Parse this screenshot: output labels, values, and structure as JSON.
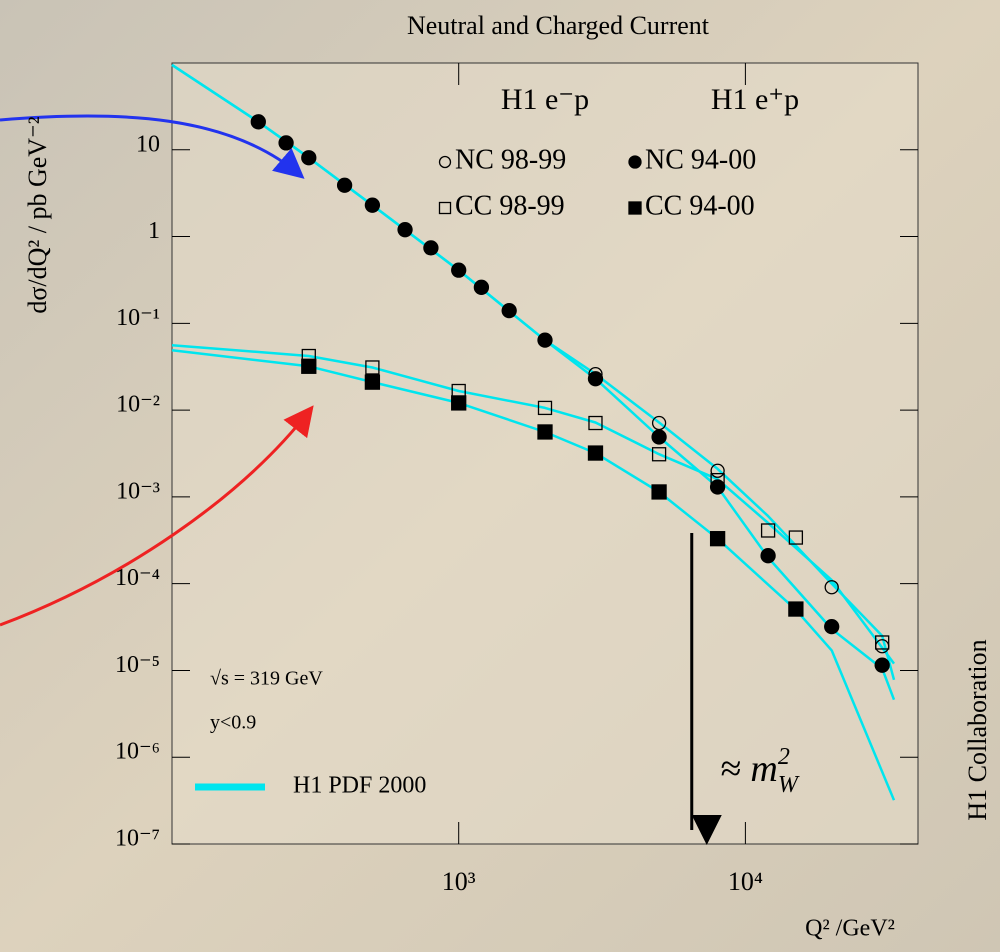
{
  "chart_data": {
    "type": "scatter",
    "title": "Neutral and Charged Current",
    "x_label": "Q²  /GeV²",
    "y_label": "dσ/dQ² / pb GeV⁻²",
    "log_x": true,
    "log_y": true,
    "xlim": [
      100,
      40000
    ],
    "ylim": [
      1e-07,
      100
    ],
    "xticks": [
      {
        "value": 1000,
        "label": "10³"
      },
      {
        "value": 10000,
        "label": "10⁴"
      }
    ],
    "yticks": [
      {
        "value": 1e-07,
        "label": "10⁻⁷"
      },
      {
        "value": 1e-06,
        "label": "10⁻⁶"
      },
      {
        "value": 1e-05,
        "label": "10⁻⁵"
      },
      {
        "value": 0.0001,
        "label": "10⁻⁴"
      },
      {
        "value": 0.001,
        "label": "10⁻³"
      },
      {
        "value": 0.01,
        "label": "10⁻²"
      },
      {
        "value": 0.1,
        "label": "10⁻¹"
      },
      1,
      10
    ],
    "legend_headers": [
      "H1 e⁻p",
      "H1 e⁺p"
    ],
    "series": [
      {
        "name": "NC 98-99",
        "marker": "open-circle",
        "color": "#000000",
        "x": [
          3000,
          5000,
          8000,
          20000,
          30000
        ],
        "values": [
          0.026,
          0.0071,
          0.002,
          9.1e-05,
          1.9e-05
        ]
      },
      {
        "name": "NC 94-00",
        "marker": "filled-circle",
        "color": "#000000",
        "x": [
          200,
          250,
          300,
          400,
          500,
          650,
          800,
          1000,
          1200,
          1500,
          2000,
          3000,
          5000,
          8000,
          12000,
          20000,
          30000
        ],
        "values": [
          21,
          12,
          8.1,
          3.9,
          2.3,
          1.2,
          0.74,
          0.41,
          0.26,
          0.14,
          0.064,
          0.023,
          0.0049,
          0.0013,
          0.00021,
          3.2e-05,
          1.15e-05
        ]
      },
      {
        "name": "CC 98-99",
        "marker": "open-square",
        "color": "#000000",
        "x": [
          300,
          500,
          1000,
          2000,
          3000,
          5000,
          8000,
          12000,
          15000,
          30000
        ],
        "values": [
          0.042,
          0.031,
          0.0166,
          0.0106,
          0.0071,
          0.0031,
          0.00156,
          0.00041,
          0.00034,
          2.1e-05
        ]
      },
      {
        "name": "CC 94-00",
        "marker": "filled-square",
        "color": "#000000",
        "x": [
          300,
          500,
          1000,
          2000,
          3000,
          5000,
          8000,
          15000
        ],
        "values": [
          0.032,
          0.021,
          0.0121,
          0.0056,
          0.0032,
          0.00114,
          0.00033,
          5.1e-05
        ]
      }
    ],
    "fit": {
      "name": "H1 PDF 2000",
      "color": "#00e5ee",
      "curves": [
        {
          "x": [
            100,
            200,
            300,
            500,
            1000,
            2000,
            3000,
            5000,
            8000,
            12000,
            20000,
            30000,
            33000
          ],
          "values": [
            95,
            21,
            8.1,
            2.3,
            0.41,
            0.064,
            0.023,
            0.0049,
            0.0013,
            0.0002,
            3e-05,
            1.05e-05,
            4.6e-06
          ]
        },
        {
          "x": [
            100,
            200,
            300,
            500,
            1000,
            2000,
            3000,
            5000,
            8000,
            12000,
            20000,
            30000,
            33000
          ],
          "values": [
            95,
            21,
            8.1,
            2.3,
            0.41,
            0.064,
            0.026,
            0.0072,
            0.0021,
            0.0006,
            0.0001,
            2.5e-05,
            7.8e-06
          ]
        },
        {
          "x": [
            100,
            300,
            500,
            1000,
            2000,
            3000,
            5000,
            8000,
            12000,
            20000,
            33000
          ],
          "values": [
            0.056,
            0.042,
            0.031,
            0.0166,
            0.0106,
            0.0072,
            0.0031,
            0.0016,
            0.0005,
            0.00011,
            1.2e-05
          ]
        },
        {
          "x": [
            100,
            300,
            500,
            1000,
            2000,
            3000,
            5000,
            8000,
            15000,
            20000,
            33000
          ],
          "values": [
            0.049,
            0.032,
            0.021,
            0.0121,
            0.0056,
            0.0032,
            0.00114,
            0.00033,
            5e-05,
            1.7e-05,
            3.2e-07
          ]
        }
      ]
    },
    "annotations": [
      "√s = 319 GeV",
      "y<0.9"
    ],
    "mw_arrow_x": 6500,
    "mw_label": {
      "symbol": "≈ m",
      "sup": "2",
      "sub": "W"
    },
    "side_label": "H1 Collaboration"
  }
}
